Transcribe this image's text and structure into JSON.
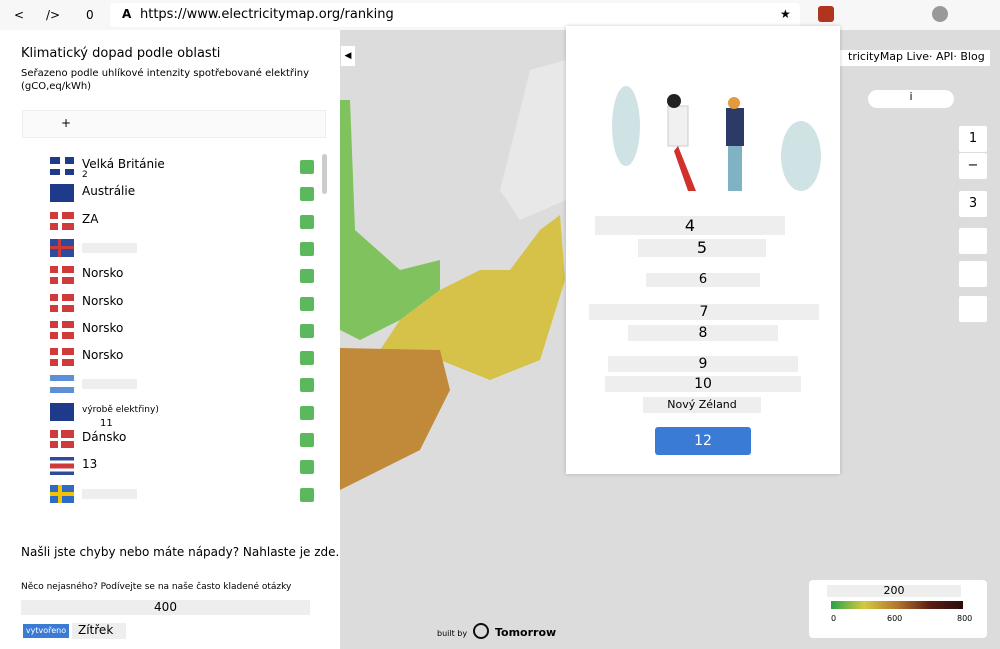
{
  "browser": {
    "back": "<",
    "code": "/>",
    "tabs": "0",
    "icon": "A",
    "url": "https://www.electricitymap.org/ranking",
    "star": "★"
  },
  "sidebar": {
    "title": "Klimatický dopad podle oblasti",
    "subtitle": "Seřazeno podle uhlíkové intenzity spotřebované elektřiny",
    "unit": "(gCO,eq/kWh)",
    "search": "+",
    "rows": [
      {
        "name": "Velká Británie",
        "value": "2"
      },
      {
        "name": "Austrálie"
      },
      {
        "name": "ZA"
      },
      {
        "name": "Norsko"
      },
      {
        "name": "Norsko"
      },
      {
        "name": "Norsko"
      },
      {
        "name": "Norsko"
      },
      {
        "name": "výrobě elektřiny)",
        "value": "11"
      },
      {
        "name": "Dánsko"
      },
      {
        "name": "13"
      }
    ],
    "feedback": "Našli jste chyby nebo máte nápady? Nahlaste je zde.",
    "faq": "Něco nejasného? Podívejte se na naše často kladené otázky",
    "count": "400",
    "button": "vytvořeno",
    "tomorrow": "Zítřek"
  },
  "header": {
    "links": "tricityMap Live· API· Blog",
    "info": "i"
  },
  "controls": [
    "1",
    "−",
    "3"
  ],
  "modal": {
    "lines": [
      "4",
      "5",
      "6",
      "7",
      "8",
      "9",
      "10",
      "Nový Zéland"
    ],
    "button": "12"
  },
  "legend": {
    "title": "200",
    "ticks": [
      "0",
      "600",
      "800"
    ]
  },
  "credit": {
    "by": "built by",
    "name": "Tomorrow"
  }
}
